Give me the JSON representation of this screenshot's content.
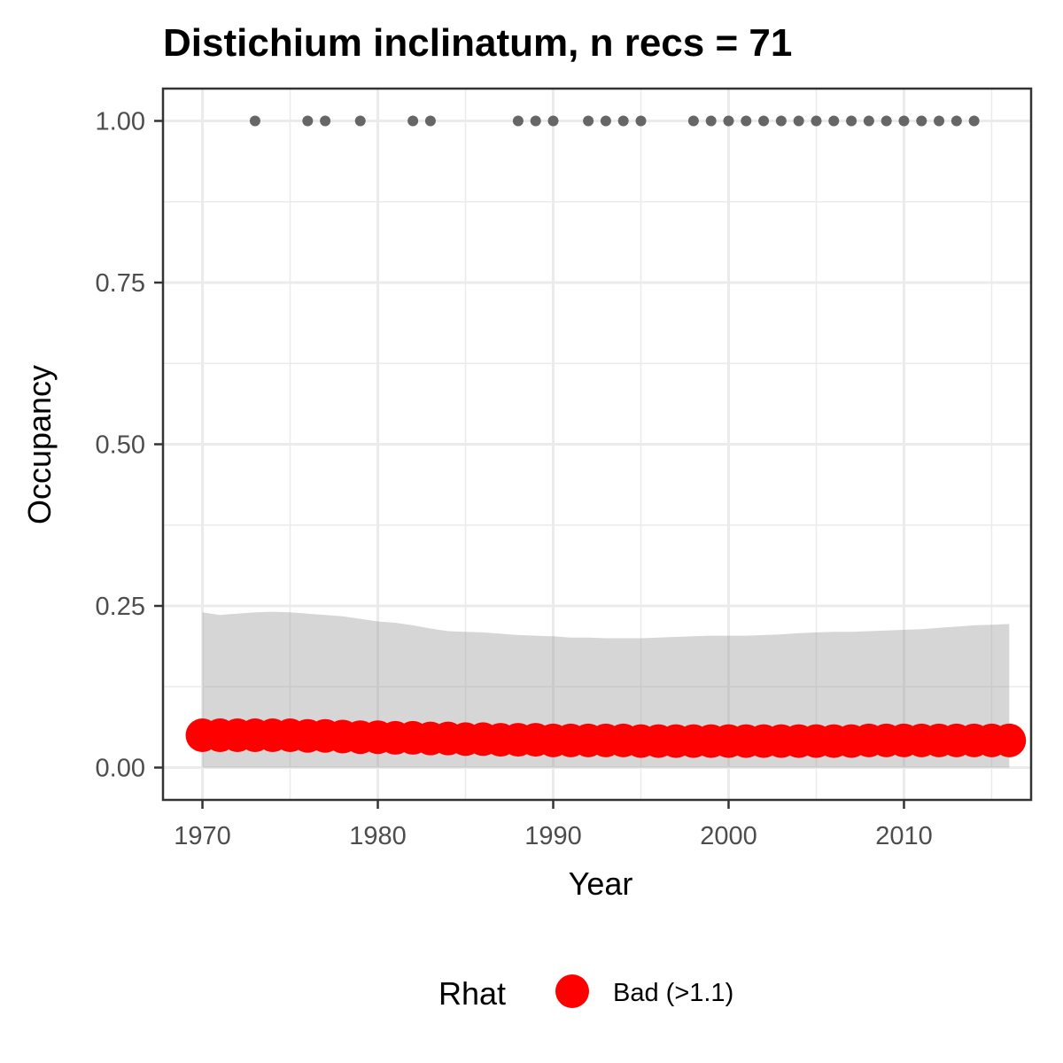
{
  "chart_data": {
    "type": "line",
    "title": "Distichium inclinatum, n recs = 71",
    "xlabel": "Year",
    "ylabel": "Occupancy",
    "xlim": [
      1967.75,
      2017.25
    ],
    "ylim": [
      -0.05,
      1.05
    ],
    "x_ticks": [
      1970,
      1980,
      1990,
      2000,
      2010
    ],
    "x_minor_ticks": [
      1975,
      1985,
      1995,
      2005,
      2015
    ],
    "y_ticks": [
      0.0,
      0.25,
      0.5,
      0.75,
      1.0
    ],
    "y_tick_labels": [
      "0.00",
      "0.25",
      "0.50",
      "0.75",
      "1.00"
    ],
    "y_minor_ticks": [
      0.125,
      0.375,
      0.625,
      0.875
    ],
    "grid": true,
    "x": [
      1970,
      1971,
      1972,
      1973,
      1974,
      1975,
      1976,
      1977,
      1978,
      1979,
      1980,
      1981,
      1982,
      1983,
      1984,
      1985,
      1986,
      1987,
      1988,
      1989,
      1990,
      1991,
      1992,
      1993,
      1994,
      1995,
      1996,
      1997,
      1998,
      1999,
      2000,
      2001,
      2002,
      2003,
      2004,
      2005,
      2006,
      2007,
      2008,
      2009,
      2010,
      2011,
      2012,
      2013,
      2014,
      2015,
      2016
    ],
    "occupancy_mean": [
      0.05,
      0.05,
      0.05,
      0.05,
      0.05,
      0.05,
      0.049,
      0.049,
      0.048,
      0.047,
      0.047,
      0.046,
      0.046,
      0.045,
      0.045,
      0.044,
      0.044,
      0.043,
      0.043,
      0.043,
      0.042,
      0.042,
      0.042,
      0.042,
      0.042,
      0.041,
      0.041,
      0.041,
      0.041,
      0.041,
      0.041,
      0.041,
      0.041,
      0.041,
      0.041,
      0.041,
      0.041,
      0.041,
      0.042,
      0.042,
      0.042,
      0.042,
      0.042,
      0.042,
      0.042,
      0.042,
      0.042
    ],
    "occupancy_upper": [
      0.24,
      0.236,
      0.238,
      0.24,
      0.241,
      0.24,
      0.238,
      0.236,
      0.234,
      0.23,
      0.226,
      0.224,
      0.22,
      0.215,
      0.211,
      0.21,
      0.209,
      0.207,
      0.205,
      0.204,
      0.203,
      0.201,
      0.201,
      0.2,
      0.2,
      0.2,
      0.201,
      0.202,
      0.203,
      0.204,
      0.204,
      0.204,
      0.205,
      0.206,
      0.208,
      0.209,
      0.21,
      0.21,
      0.211,
      0.212,
      0.213,
      0.214,
      0.216,
      0.218,
      0.22,
      0.221,
      0.222
    ],
    "occupancy_lower": [
      0.0,
      0.0,
      0.0,
      0.0,
      0.0,
      0.0,
      0.0,
      0.0,
      0.0,
      0.0,
      0.0,
      0.0,
      0.0,
      0.0,
      0.0,
      0.0,
      0.0,
      0.0,
      0.0,
      0.0,
      0.0,
      0.0,
      0.0,
      0.0,
      0.0,
      0.0,
      0.0,
      0.0,
      0.0,
      0.0,
      0.0,
      0.0,
      0.0,
      0.0,
      0.0,
      0.0,
      0.0,
      0.0,
      0.0,
      0.0,
      0.0,
      0.0,
      0.0,
      0.0,
      0.0,
      0.0,
      0.0
    ],
    "record_years": [
      1973,
      1976,
      1977,
      1979,
      1982,
      1983,
      1988,
      1989,
      1990,
      1992,
      1993,
      1994,
      1995,
      1998,
      1999,
      2000,
      2001,
      2002,
      2003,
      2004,
      2005,
      2006,
      2007,
      2008,
      2009,
      2010,
      2011,
      2012,
      2013,
      2014
    ],
    "record_value": 1.0,
    "legend": {
      "title": "Rhat",
      "entries": [
        {
          "label": "Bad (>1.1)",
          "color": "#ff0000"
        }
      ],
      "position": "bottom"
    },
    "colors": {
      "mean_points": "#ff0000",
      "ribbon": "#999999",
      "record_points": "#666666",
      "grid": "#ebebeb",
      "panel_border": "#333333"
    }
  }
}
